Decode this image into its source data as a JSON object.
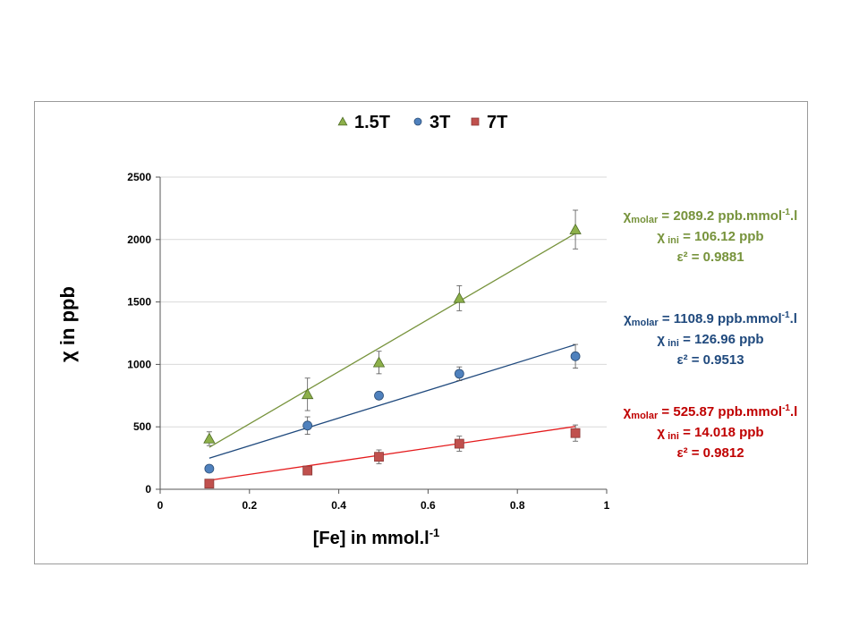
{
  "chart_data": {
    "type": "scatter",
    "xlabel": "[Fe] in mmol.l",
    "xlabel_sup": "-1",
    "ylabel": "χ in ppb",
    "xlim": [
      0,
      1
    ],
    "ylim": [
      0,
      2500
    ],
    "x_ticks": [
      "0",
      "0.2",
      "0.4",
      "0.6",
      "0.8",
      "1"
    ],
    "y_ticks": [
      "0",
      "500",
      "1000",
      "1500",
      "2000",
      "2500"
    ],
    "grid": "horizontal",
    "legend_position": "top",
    "series": [
      {
        "name": "1.5T",
        "marker": "triangle",
        "color": "#8db04a",
        "line_color": "#77933c",
        "annotation_color": "#77933c",
        "x": [
          0.11,
          0.33,
          0.49,
          0.67,
          0.93
        ],
        "y": [
          405,
          760,
          1015,
          1530,
          2080
        ],
        "err": [
          55,
          130,
          90,
          100,
          155
        ],
        "fit": {
          "slope": 2089.2,
          "intercept": 106.12,
          "x_range": [
            0.11,
            0.93
          ]
        },
        "annotation": {
          "line1_symbol": "χ",
          "line1_sub": "molar",
          "line1_text": " = 2089.2 ppb.mmol",
          "line1_sup": "-1",
          "line1_end": ".l",
          "line2_symbol": "χ",
          "line2_sub": " ini",
          "line2_text": " = 106.12 ppb",
          "line3": "ε² = 0.9881"
        }
      },
      {
        "name": "3T",
        "marker": "circle",
        "color": "#4f81bd",
        "line_color": "#1f497d",
        "annotation_color": "#1f497d",
        "x": [
          0.11,
          0.33,
          0.49,
          0.67,
          0.93
        ],
        "y": [
          165,
          510,
          750,
          925,
          1065
        ],
        "err": [
          0,
          70,
          0,
          55,
          95
        ],
        "fit": {
          "slope": 1108.9,
          "intercept": 126.96,
          "x_range": [
            0.11,
            0.93
          ]
        },
        "annotation": {
          "line1_symbol": "χ",
          "line1_sub": "molar",
          "line1_text": " = 1108.9 ppb.mmol",
          "line1_sup": "-1",
          "line1_end": ".l",
          "line2_symbol": "χ",
          "line2_sub": " ini",
          "line2_text": " = 126.96 ppb",
          "line3": "ε² = 0.9513"
        }
      },
      {
        "name": "7T",
        "marker": "square",
        "color": "#c0504d",
        "line_color": "#e41a1c",
        "annotation_color": "#c00000",
        "x": [
          0.11,
          0.33,
          0.49,
          0.67,
          0.93
        ],
        "y": [
          45,
          150,
          260,
          365,
          450
        ],
        "err": [
          25,
          30,
          55,
          60,
          65
        ],
        "fit": {
          "slope": 525.87,
          "intercept": 14.018,
          "x_range": [
            0.11,
            0.93
          ]
        },
        "annotation": {
          "line1_symbol": "χ",
          "line1_sub": "molar",
          "line1_text": " = 525.87 ppb.mmol",
          "line1_sup": "-1",
          "line1_end": ".l",
          "line2_symbol": "χ",
          "line2_sub": " ini",
          "line2_text": " = 14.018 ppb",
          "line3": "ε² = 0.9812"
        }
      }
    ]
  }
}
